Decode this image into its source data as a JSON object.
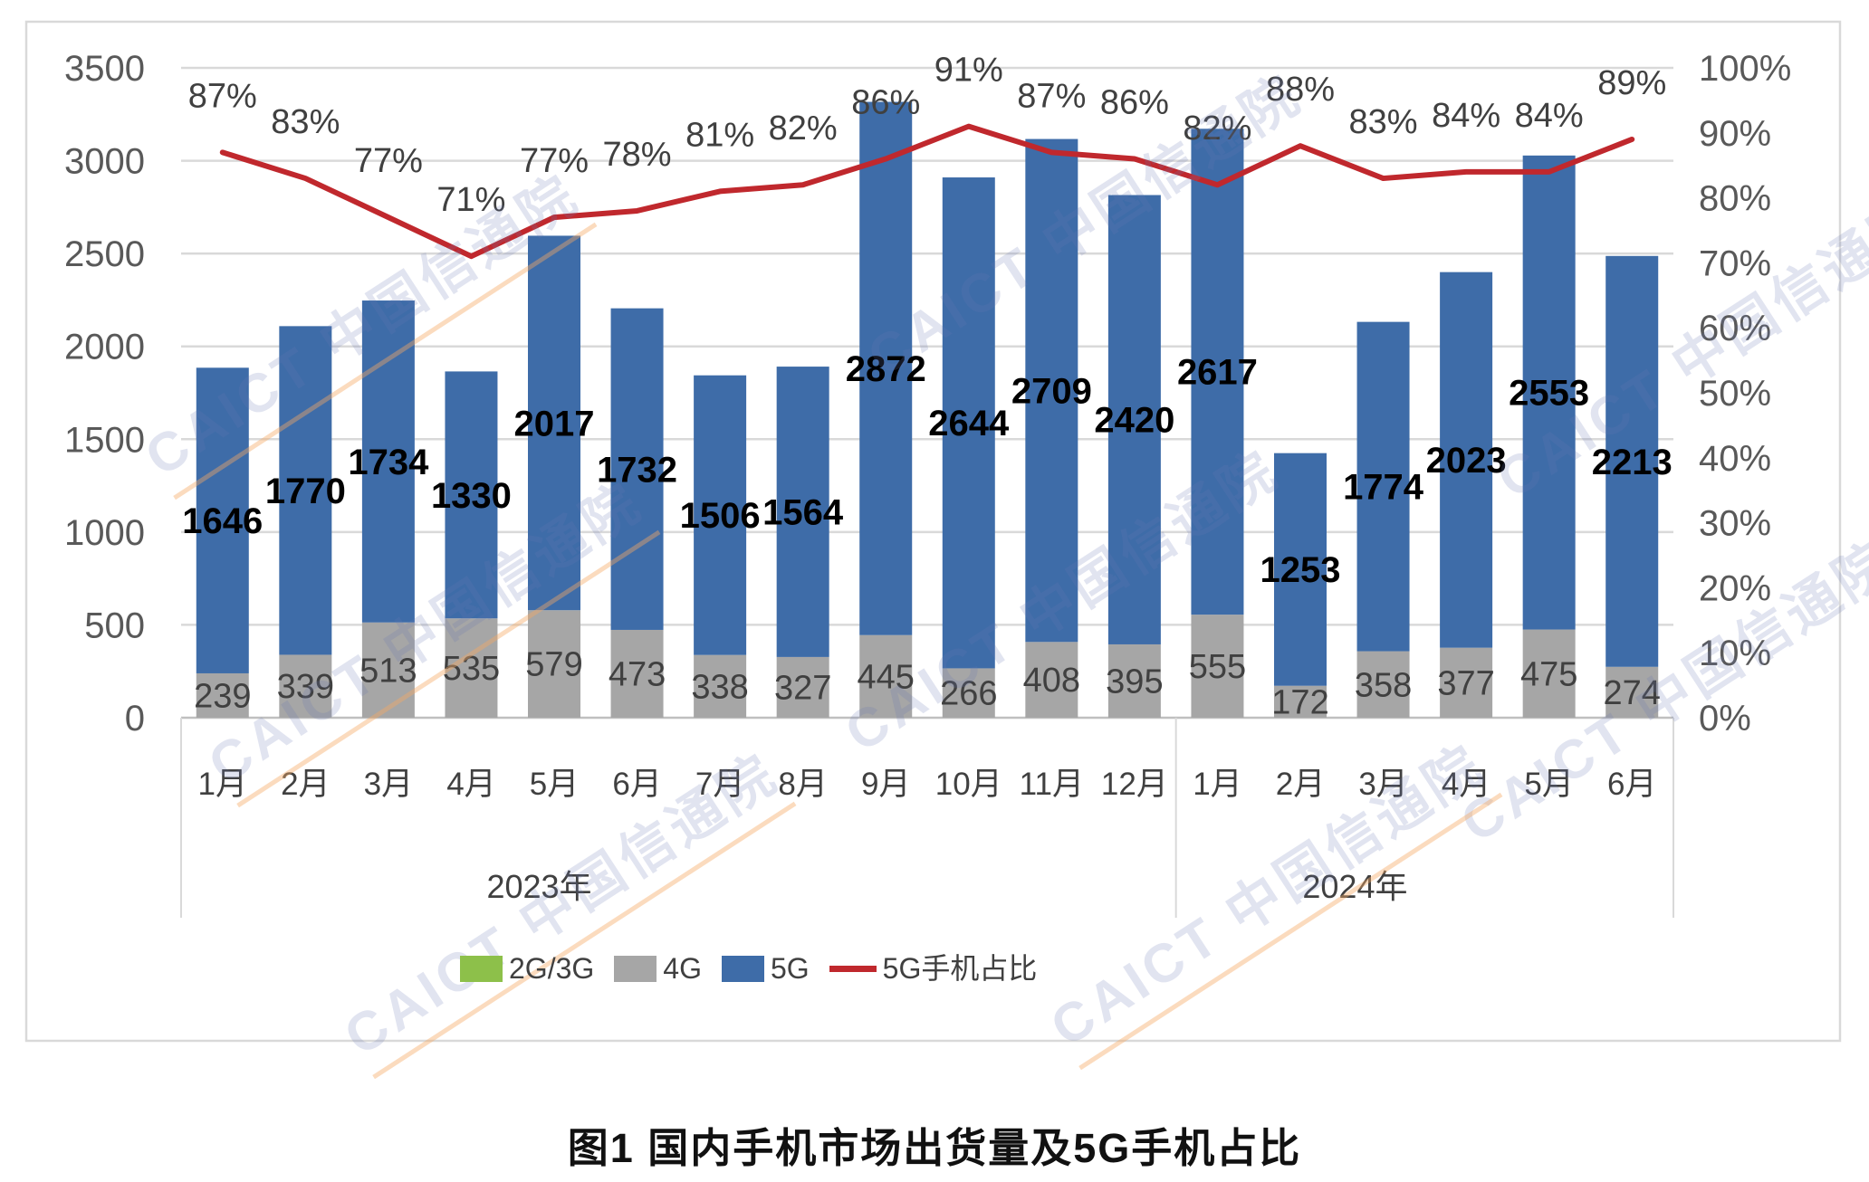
{
  "watermark": {
    "text": "CAICT 中国信通院"
  },
  "chart_data": {
    "type": "bar",
    "subtype": "stacked-bars-with-line",
    "title": "图1  国内手机市场出货量及5G手机占比",
    "categories": [
      "1月",
      "2月",
      "3月",
      "4月",
      "5月",
      "6月",
      "7月",
      "8月",
      "9月",
      "10月",
      "11月",
      "12月",
      "1月",
      "2月",
      "3月",
      "4月",
      "5月",
      "6月"
    ],
    "year_groups": [
      {
        "label": "2023年",
        "months": 12
      },
      {
        "label": "2024年",
        "months": 6
      }
    ],
    "series": [
      {
        "name": "2G/3G",
        "type": "bar",
        "color": "#8DC04A",
        "values": null
      },
      {
        "name": "4G",
        "type": "bar",
        "color": "#A6A6A6",
        "values": [
          239,
          339,
          513,
          535,
          579,
          473,
          338,
          327,
          445,
          266,
          408,
          395,
          555,
          172,
          358,
          377,
          475,
          274
        ]
      },
      {
        "name": "5G",
        "type": "bar",
        "color": "#3E6CA8",
        "values": [
          1646,
          1770,
          1734,
          1330,
          2017,
          1732,
          1506,
          1564,
          2872,
          2644,
          2709,
          2420,
          2617,
          1253,
          1774,
          2023,
          2553,
          2213
        ]
      },
      {
        "name": "5G手机占比",
        "type": "line",
        "color": "#C0282D",
        "unit": "%",
        "values": [
          87,
          83,
          77,
          71,
          77,
          78,
          81,
          82,
          86,
          91,
          87,
          86,
          82,
          88,
          83,
          84,
          84,
          89
        ]
      }
    ],
    "left_axis": {
      "min": 0,
      "max": 3500,
      "step": 500,
      "ticks": [
        "0",
        "500",
        "1000",
        "1500",
        "2000",
        "2500",
        "3000",
        "3500"
      ]
    },
    "right_axis": {
      "min": 0,
      "max": 100,
      "step": 10,
      "ticks": [
        "0%",
        "10%",
        "20%",
        "30%",
        "40%",
        "50%",
        "60%",
        "70%",
        "80%",
        "90%",
        "100%"
      ]
    },
    "grid": true,
    "legend_position": "bottom"
  }
}
